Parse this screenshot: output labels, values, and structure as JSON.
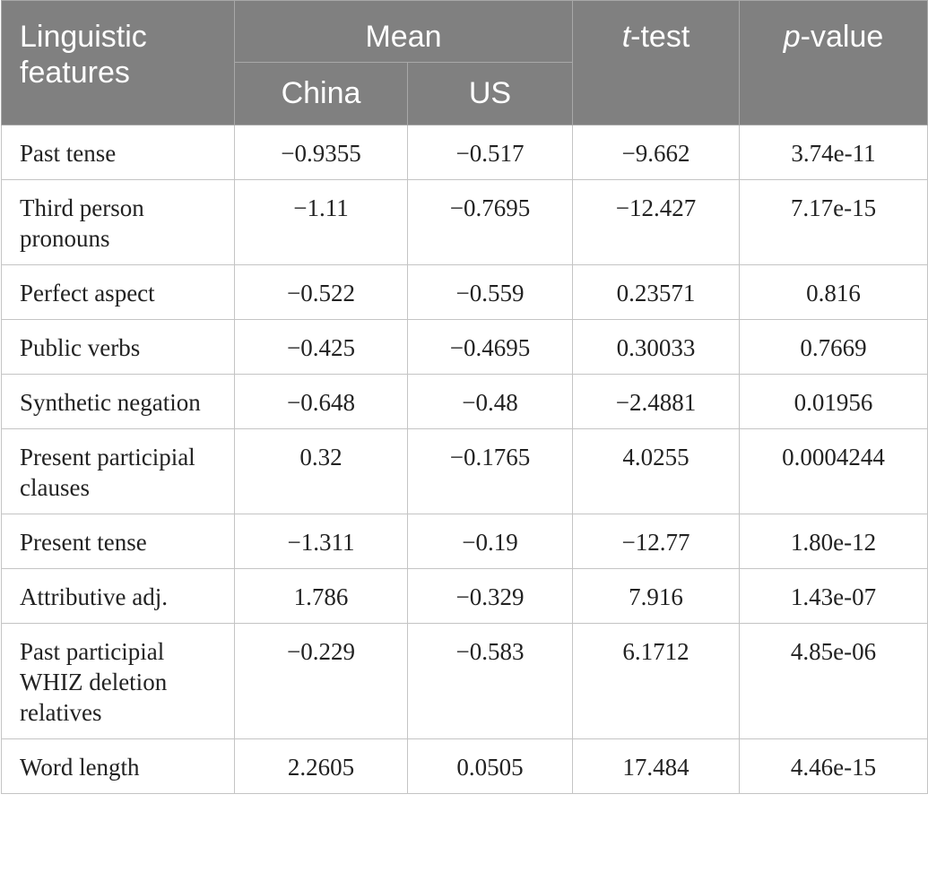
{
  "header": {
    "features": "Linguistic features",
    "mean": "Mean",
    "china": "China",
    "us": "US",
    "ttest_prefix": "t",
    "ttest_suffix": "-test",
    "pvalue_prefix": "p",
    "pvalue_suffix": "-value"
  },
  "rows": [
    {
      "feature": "Past tense",
      "china": "−0.9355",
      "us": "−0.517",
      "ttest": "−9.662",
      "pvalue": "3.74e-11"
    },
    {
      "feature": "Third person pronouns",
      "china": "−1.11",
      "us": "−0.7695",
      "ttest": "−12.427",
      "pvalue": "7.17e-15"
    },
    {
      "feature": "Perfect aspect",
      "china": "−0.522",
      "us": "−0.559",
      "ttest": "0.23571",
      "pvalue": "0.816"
    },
    {
      "feature": "Public verbs",
      "china": "−0.425",
      "us": "−0.4695",
      "ttest": "0.30033",
      "pvalue": "0.7669"
    },
    {
      "feature": "Synthetic negation",
      "china": "−0.648",
      "us": "−0.48",
      "ttest": "−2.4881",
      "pvalue": "0.01956"
    },
    {
      "feature": "Present participial clauses",
      "china": "0.32",
      "us": "−0.1765",
      "ttest": "4.0255",
      "pvalue": "0.0004244"
    },
    {
      "feature": "Present tense",
      "china": "−1.311",
      "us": "−0.19",
      "ttest": "−12.77",
      "pvalue": "1.80e-12"
    },
    {
      "feature": "Attributive adj.",
      "china": "1.786",
      "us": "−0.329",
      "ttest": "7.916",
      "pvalue": "1.43e-07"
    },
    {
      "feature": "Past participial WHIZ deletion relatives",
      "china": "−0.229",
      "us": "−0.583",
      "ttest": "6.1712",
      "pvalue": "4.85e-06"
    },
    {
      "feature": "Word length",
      "china": "2.2605",
      "us": "0.0505",
      "ttest": "17.484",
      "pvalue": "4.46e-15"
    }
  ]
}
